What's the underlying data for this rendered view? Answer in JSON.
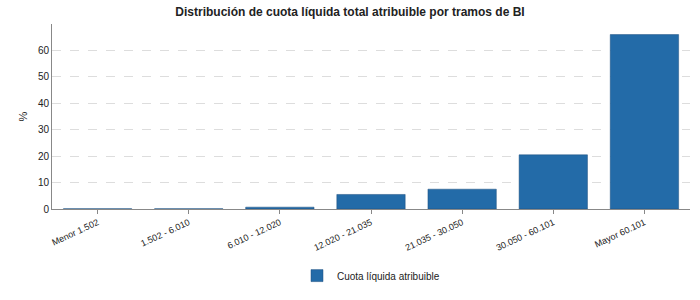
{
  "chart_data": {
    "type": "bar",
    "title": "Distribución de cuota líquida total atribuible por tramos de BI",
    "y_label": "%",
    "categories": [
      "Menor 1.502",
      "1.502 - 6.010",
      "6.010 - 12.020",
      "12.020 - 21.035",
      "21.035 - 30.050",
      "30.050 - 60.101",
      "Mayor 60.101"
    ],
    "series": [
      {
        "name": "Cuota líquida atribuible",
        "color": "#236ba8",
        "values": [
          0.1,
          0.1,
          0.7,
          5.5,
          7.5,
          20.5,
          66
        ]
      }
    ],
    "ylim": [
      0,
      70
    ],
    "yticks": [
      0,
      10,
      20,
      30,
      40,
      50,
      60
    ],
    "grid": true,
    "legend": "bottom"
  }
}
